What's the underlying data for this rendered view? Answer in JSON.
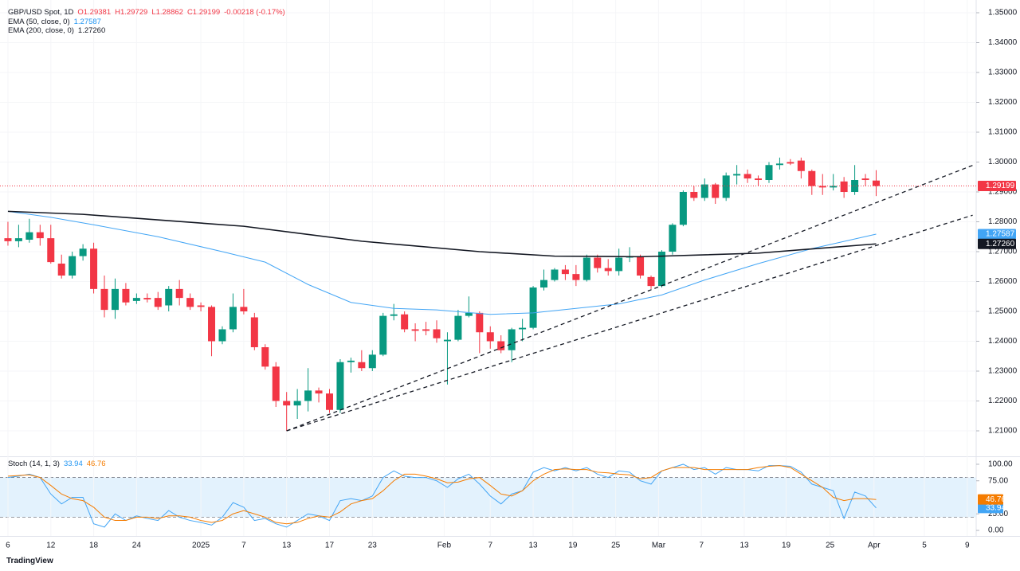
{
  "header": {
    "symbol": "GBP/USD Spot, 1D",
    "ohlc": [
      "O1.29381",
      "H1.29729",
      "L1.28862",
      "C1.29199"
    ],
    "change": "-0.00218 (-0.17%)"
  },
  "brand": "TradingView",
  "chart_data": [
    {
      "type": "candlestick",
      "up_color": "#089981",
      "down_color": "#f23645",
      "open": [
        1.2745,
        1.2735,
        1.274,
        1.2765,
        1.2745,
        1.266,
        1.262,
        1.2685,
        1.271,
        1.2575,
        1.2505,
        1.2575,
        1.2535,
        1.2545,
        1.2545,
        1.252,
        1.2575,
        1.2545,
        1.252,
        1.2515,
        1.24,
        1.244,
        1.2515,
        1.248,
        1.238,
        1.2315,
        1.22,
        1.2185,
        1.22,
        1.2235,
        1.2225,
        1.217,
        1.233,
        1.233,
        1.231,
        1.2355,
        1.2485,
        1.249,
        1.244,
        1.244,
        1.244,
        1.24,
        1.2405,
        1.2485,
        1.2495,
        1.243,
        1.24,
        1.237,
        1.244,
        1.2445,
        1.258,
        1.2605,
        1.264,
        1.2625,
        1.2605,
        1.268,
        1.2645,
        1.2635,
        1.268,
        1.2685,
        1.2615,
        1.2585,
        1.27,
        1.279,
        1.29,
        1.288,
        1.2925,
        1.288,
        1.2955,
        1.296,
        1.2945,
        1.294,
        1.299,
        1.3,
        1.3005,
        1.297,
        1.292,
        1.2915,
        1.2935,
        1.29,
        1.2945,
        1.29381
      ],
      "high": [
        1.28,
        1.279,
        1.281,
        1.279,
        1.279,
        1.269,
        1.27,
        1.2725,
        1.273,
        1.262,
        1.261,
        1.2595,
        1.256,
        1.256,
        1.2565,
        1.2585,
        1.2605,
        1.256,
        1.253,
        1.252,
        1.245,
        1.256,
        1.2575,
        1.2495,
        1.239,
        1.233,
        1.223,
        1.224,
        1.231,
        1.2245,
        1.224,
        1.234,
        1.2345,
        1.237,
        1.237,
        1.2495,
        1.2525,
        1.25,
        1.246,
        1.2465,
        1.247,
        1.243,
        1.2505,
        1.255,
        1.25,
        1.245,
        1.242,
        1.2445,
        1.2475,
        1.2585,
        1.264,
        1.2645,
        1.2655,
        1.2655,
        1.269,
        1.269,
        1.2675,
        1.271,
        1.2715,
        1.269,
        1.262,
        1.2705,
        1.2795,
        1.2905,
        1.292,
        1.2945,
        1.293,
        1.2965,
        1.299,
        1.2975,
        1.2955,
        1.3,
        1.3015,
        1.301,
        1.3015,
        1.2975,
        1.296,
        1.296,
        1.295,
        1.299,
        1.296,
        1.29729
      ],
      "low": [
        1.272,
        1.2715,
        1.273,
        1.272,
        1.266,
        1.261,
        1.261,
        1.267,
        1.256,
        1.248,
        1.2475,
        1.252,
        1.2525,
        1.253,
        1.2505,
        1.25,
        1.252,
        1.2505,
        1.25,
        1.235,
        1.239,
        1.243,
        1.249,
        1.237,
        1.2305,
        1.218,
        1.21,
        1.214,
        1.2165,
        1.2195,
        1.216,
        1.216,
        1.2295,
        1.23,
        1.23,
        1.235,
        1.247,
        1.243,
        1.24,
        1.242,
        1.2395,
        1.2255,
        1.24,
        1.248,
        1.236,
        1.2375,
        1.236,
        1.233,
        1.24,
        1.244,
        1.257,
        1.26,
        1.2605,
        1.2585,
        1.26,
        1.263,
        1.262,
        1.262,
        1.2665,
        1.261,
        1.2575,
        1.258,
        1.269,
        1.2785,
        1.287,
        1.287,
        1.286,
        1.287,
        1.2925,
        1.293,
        1.292,
        1.293,
        1.2975,
        1.299,
        1.2945,
        1.289,
        1.289,
        1.2905,
        1.288,
        1.289,
        1.292,
        1.28862
      ],
      "close": [
        1.2735,
        1.2745,
        1.2765,
        1.2745,
        1.2665,
        1.262,
        1.2685,
        1.271,
        1.2575,
        1.2505,
        1.2575,
        1.253,
        1.2545,
        1.254,
        1.2515,
        1.2575,
        1.2545,
        1.2515,
        1.2515,
        1.24,
        1.244,
        1.2515,
        1.25,
        1.238,
        1.2315,
        1.22,
        1.2185,
        1.22,
        1.2235,
        1.2225,
        1.217,
        1.233,
        1.2335,
        1.231,
        1.2355,
        1.2485,
        1.249,
        1.244,
        1.2435,
        1.2435,
        1.241,
        1.2405,
        1.2485,
        1.2495,
        1.243,
        1.24,
        1.237,
        1.244,
        1.2445,
        1.258,
        1.2605,
        1.264,
        1.2625,
        1.2605,
        1.268,
        1.2645,
        1.2635,
        1.268,
        1.2685,
        1.262,
        1.2585,
        1.27,
        1.279,
        1.29,
        1.288,
        1.2925,
        1.288,
        1.2955,
        1.296,
        1.2945,
        1.294,
        1.299,
        1.2995,
        1.2995,
        1.297,
        1.292,
        1.2915,
        1.292,
        1.29,
        1.294,
        1.294,
        1.29199
      ],
      "last_label": "1.29199",
      "series": [
        {
          "name": "EMA (50, close, 0)",
          "color": "#42a5f5",
          "value_label": "1.27587",
          "x": [
            0,
            4,
            8,
            14,
            20,
            24,
            28,
            32,
            36,
            40,
            45,
            49,
            53,
            57,
            61,
            65,
            70,
            75,
            81
          ],
          "values": [
            1.2835,
            1.2815,
            1.279,
            1.275,
            1.27,
            1.2665,
            1.259,
            1.253,
            1.251,
            1.2505,
            1.249,
            1.2495,
            1.251,
            1.2525,
            1.2555,
            1.2605,
            1.266,
            1.271,
            1.27587
          ]
        },
        {
          "name": "EMA (200, close, 0)",
          "color": "#131722",
          "value_label": "1.27260",
          "x": [
            0,
            7,
            22,
            33,
            44,
            51,
            59,
            61,
            70,
            81
          ],
          "values": [
            1.2835,
            1.2825,
            1.2785,
            1.2735,
            1.27,
            1.2685,
            1.2683,
            1.2685,
            1.2695,
            1.2726
          ]
        }
      ],
      "trendlines": [
        {
          "x": [
            26,
            90
          ],
          "values": [
            1.21,
            1.2989
          ]
        },
        {
          "x": [
            26,
            90
          ],
          "values": [
            1.21,
            1.2822
          ]
        }
      ],
      "xlim": [
        -0.74,
        90.33
      ],
      "ylim": [
        1.20173,
        1.35427
      ],
      "yticks": [
        {
          "value": 1.21,
          "label": "1.21000"
        },
        {
          "value": 1.22,
          "label": "1.22000"
        },
        {
          "value": 1.23,
          "label": "1.23000"
        },
        {
          "value": 1.24,
          "label": "1.24000"
        },
        {
          "value": 1.25,
          "label": "1.25000"
        },
        {
          "value": 1.26,
          "label": "1.26000"
        },
        {
          "value": 1.27,
          "label": "1.27000"
        },
        {
          "value": 1.28,
          "label": "1.28000"
        },
        {
          "value": 1.29,
          "label": "1.29000"
        },
        {
          "value": 1.3,
          "label": "1.30000"
        },
        {
          "value": 1.31,
          "label": "1.31000"
        },
        {
          "value": 1.32,
          "label": "1.32000"
        },
        {
          "value": 1.33,
          "label": "1.33000"
        },
        {
          "value": 1.34,
          "label": "1.34000"
        },
        {
          "value": 1.35,
          "label": "1.35000"
        }
      ]
    },
    {
      "type": "line",
      "title": "Stoch (14, 1, 3)",
      "band": [
        20,
        80
      ],
      "band_color": "#e3f2fd",
      "series": [
        {
          "name": "%K",
          "color": "#42a5f5",
          "values": [
            80,
            82,
            85,
            80,
            55,
            40,
            50,
            50,
            10,
            5,
            25,
            15,
            22,
            18,
            15,
            30,
            20,
            15,
            12,
            8,
            20,
            42,
            35,
            15,
            18,
            10,
            5,
            15,
            25,
            22,
            15,
            45,
            48,
            45,
            52,
            80,
            90,
            82,
            80,
            80,
            75,
            65,
            78,
            85,
            70,
            52,
            40,
            55,
            60,
            88,
            95,
            90,
            95,
            90,
            95,
            85,
            80,
            90,
            88,
            75,
            70,
            90,
            95,
            100,
            92,
            95,
            85,
            95,
            92,
            92,
            90,
            98,
            98,
            97,
            88,
            70,
            65,
            60,
            18,
            58,
            52,
            33.94
          ]
        },
        {
          "name": "%D",
          "color": "#f57c00",
          "values": [
            82,
            83,
            84,
            80,
            68,
            55,
            48,
            45,
            35,
            20,
            15,
            15,
            20,
            20,
            18,
            22,
            22,
            20,
            15,
            12,
            15,
            25,
            30,
            25,
            20,
            12,
            10,
            12,
            18,
            22,
            20,
            28,
            40,
            45,
            48,
            60,
            75,
            85,
            85,
            82,
            78,
            72,
            73,
            78,
            80,
            68,
            55,
            52,
            60,
            75,
            85,
            92,
            93,
            92,
            92,
            88,
            87,
            85,
            84,
            78,
            80,
            90,
            95,
            95,
            95,
            92,
            92,
            92,
            92,
            92,
            95,
            97,
            98,
            95,
            85,
            75,
            65,
            50,
            45,
            48,
            48,
            46.76
          ]
        }
      ],
      "ylim": [
        -7.2,
        109.6
      ],
      "yticks": [
        {
          "value": 0,
          "label": "0.00"
        },
        {
          "value": 25,
          "label": "25.00"
        },
        {
          "value": 75,
          "label": "75.00"
        },
        {
          "value": 100,
          "label": "100.00"
        }
      ],
      "xticks": [
        {
          "value": 0,
          "label": "6"
        },
        {
          "value": 4,
          "label": "12"
        },
        {
          "value": 8,
          "label": "18"
        },
        {
          "value": 12,
          "label": "24"
        },
        {
          "value": 18,
          "label": "2025"
        },
        {
          "value": 22,
          "label": "7"
        },
        {
          "value": 26,
          "label": "13"
        },
        {
          "value": 30,
          "label": "17"
        },
        {
          "value": 34,
          "label": "23"
        },
        {
          "value": 40.7,
          "label": "Feb"
        },
        {
          "value": 45,
          "label": "7"
        },
        {
          "value": 49,
          "label": "13"
        },
        {
          "value": 52.7,
          "label": "19"
        },
        {
          "value": 56.7,
          "label": "25"
        },
        {
          "value": 60.7,
          "label": "Mar"
        },
        {
          "value": 64.7,
          "label": "7"
        },
        {
          "value": 68.7,
          "label": "13"
        },
        {
          "value": 72.6,
          "label": "19"
        },
        {
          "value": 76.7,
          "label": "25"
        },
        {
          "value": 80.8,
          "label": "Apr"
        },
        {
          "value": 85.5,
          "label": "5"
        },
        {
          "value": 89.5,
          "label": "9"
        }
      ]
    }
  ]
}
